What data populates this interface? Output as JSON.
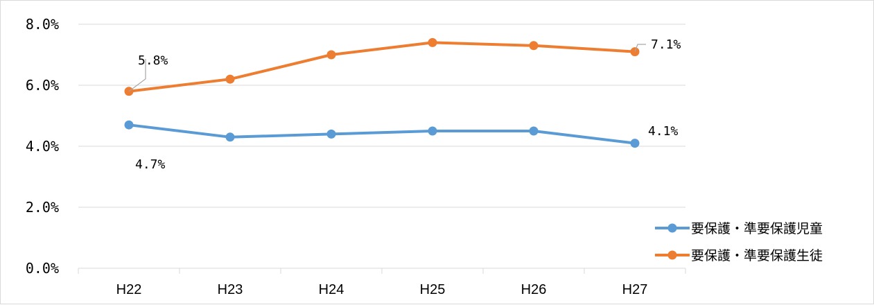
{
  "chart_data": {
    "type": "line",
    "categories": [
      "H22",
      "H23",
      "H24",
      "H25",
      "H26",
      "H27"
    ],
    "ylim": [
      0,
      8
    ],
    "yticks": [
      0,
      2,
      4,
      6,
      8
    ],
    "ytick_labels": [
      "0.0%",
      "2.0%",
      "4.0%",
      "6.0%",
      "8.0%"
    ],
    "grid": true,
    "legend_position": "right",
    "series": [
      {
        "name": "要保護・準要保護児童",
        "color": "#5b9bd5",
        "values": [
          4.7,
          4.3,
          4.4,
          4.5,
          4.5,
          4.1
        ],
        "data_labels": {
          "0": "4.7%",
          "5": "4.1%"
        }
      },
      {
        "name": "要保護・準要保護生徒",
        "color": "#ed7d31",
        "values": [
          5.8,
          6.2,
          7.0,
          7.4,
          7.3,
          7.1
        ],
        "data_labels": {
          "0": "5.8%",
          "5": "7.1%"
        }
      }
    ]
  }
}
